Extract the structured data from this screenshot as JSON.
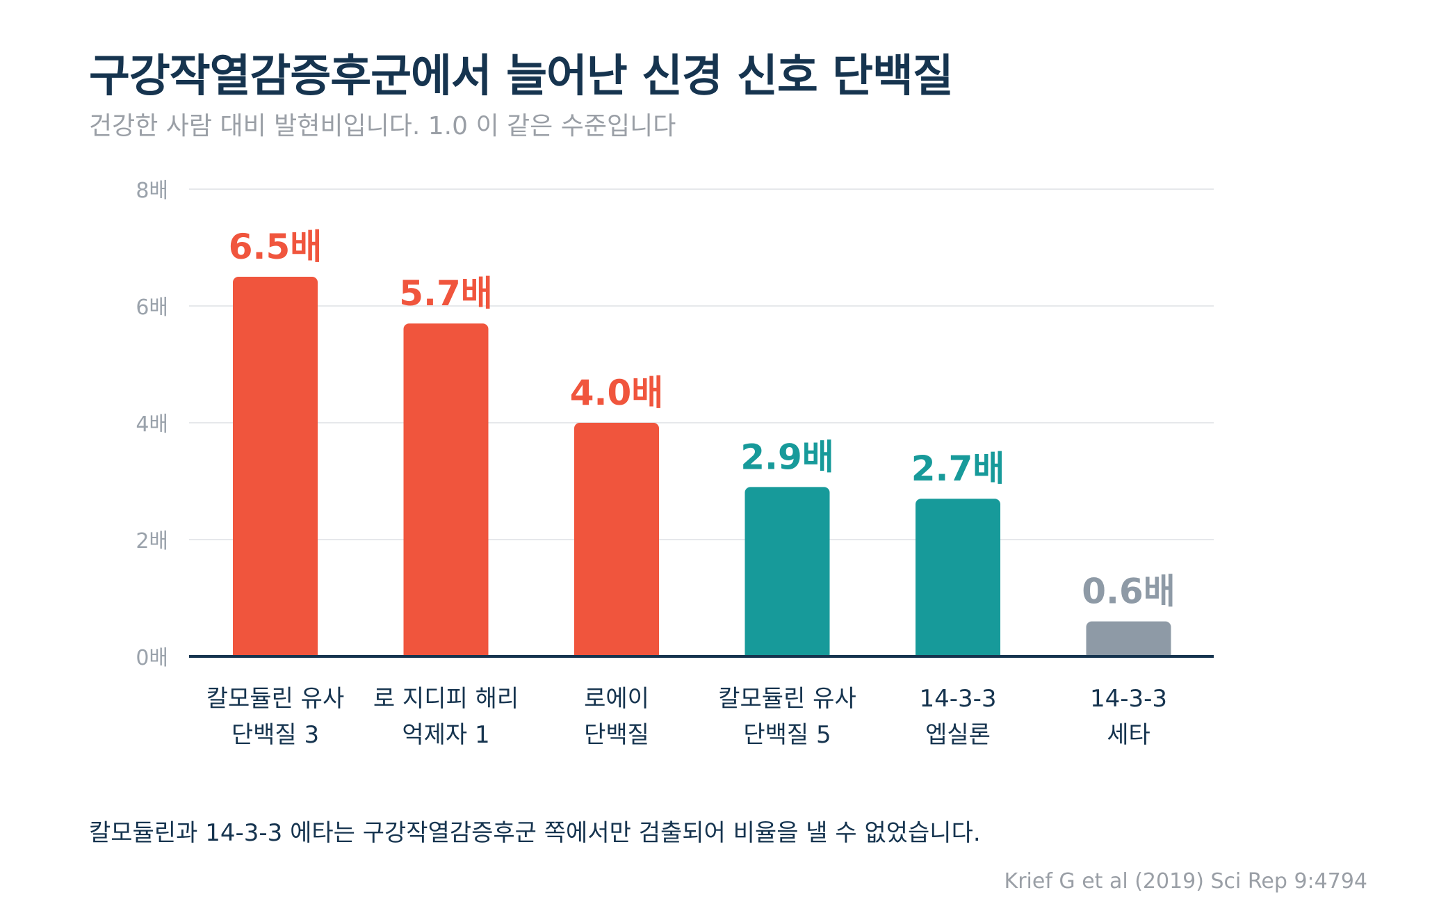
{
  "header": {
    "title": "구강작열감증후군에서 늘어난 신경 신호 단백질",
    "subtitle": "건강한 사람 대비 발현비입니다. 1.0 이 같은 수준입니다"
  },
  "chart_data": {
    "type": "bar",
    "categories": [
      [
        "칼모듈린 유사",
        "단백질 3"
      ],
      [
        "로 지디피 해리",
        "억제자 1"
      ],
      [
        "로에이",
        "단백질"
      ],
      [
        "칼모듈린 유사",
        "단백질 5"
      ],
      [
        "14-3-3",
        "엡실론"
      ],
      [
        "14-3-3",
        "세타"
      ]
    ],
    "values": [
      6.5,
      5.7,
      4.0,
      2.9,
      2.7,
      0.6
    ],
    "value_labels": [
      "6.5배",
      "5.7배",
      "4.0배",
      "2.9배",
      "2.7배",
      "0.6배"
    ],
    "bar_colors": [
      "#f0553d",
      "#f0553d",
      "#f0553d",
      "#179a9a",
      "#179a9a",
      "#8e9aa6"
    ],
    "ylim": [
      0,
      8
    ],
    "yticks": [
      0,
      2,
      4,
      6,
      8
    ],
    "ytick_labels": [
      "0배",
      "2배",
      "4배",
      "6배",
      "8배"
    ],
    "grid": true,
    "xlabel": "",
    "ylabel": ""
  },
  "footer": {
    "note": "칼모듈린과 14-3-3 에타는 구강작열감증후군 쪽에서만 검출되어 비율을 낼 수 없었습니다.",
    "source": "Krief G et al (2019) Sci Rep 9:4794"
  }
}
